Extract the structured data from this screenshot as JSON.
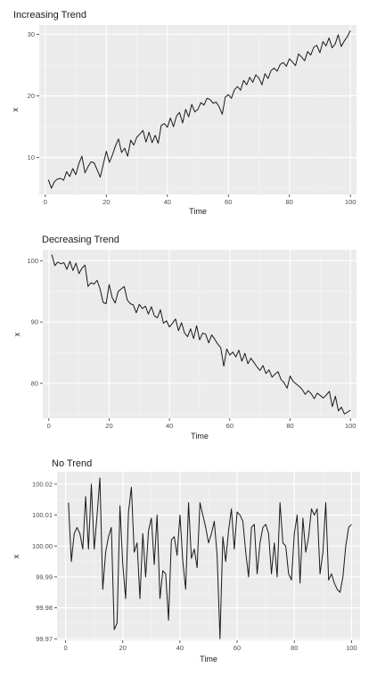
{
  "chart_data": [
    {
      "type": "line",
      "title": "Increasing Trend",
      "xlabel": "Time",
      "ylabel": "x",
      "xlim": [
        -2,
        102
      ],
      "ylim": [
        4,
        31.5
      ],
      "xticks": [
        0,
        20,
        40,
        60,
        80,
        100
      ],
      "yticks": [
        10,
        20,
        30
      ],
      "grid": true,
      "series": [
        {
          "x": [
            1,
            2,
            3,
            4,
            5,
            6,
            7,
            8,
            9,
            10,
            11,
            12,
            13,
            14,
            15,
            16,
            17,
            18,
            19,
            20,
            21,
            22,
            23,
            24,
            25,
            26,
            27,
            28,
            29,
            30,
            31,
            32,
            33,
            34,
            35,
            36,
            37,
            38,
            39,
            40,
            41,
            42,
            43,
            44,
            45,
            46,
            47,
            48,
            49,
            50,
            51,
            52,
            53,
            54,
            55,
            56,
            57,
            58,
            59,
            60,
            61,
            62,
            63,
            64,
            65,
            66,
            67,
            68,
            69,
            70,
            71,
            72,
            73,
            74,
            75,
            76,
            77,
            78,
            79,
            80,
            81,
            82,
            83,
            84,
            85,
            86,
            87,
            88,
            89,
            90,
            91,
            92,
            93,
            94,
            95,
            96,
            97,
            98,
            99,
            100
          ],
          "values": [
            6.4,
            5.0,
            6.1,
            6.5,
            6.6,
            6.3,
            7.7,
            6.9,
            8.2,
            7.2,
            9.0,
            10.2,
            7.5,
            8.5,
            9.3,
            9.1,
            8.0,
            6.8,
            8.9,
            11.0,
            9.2,
            10.4,
            11.9,
            13.0,
            10.8,
            11.5,
            10.2,
            12.8,
            12.0,
            13.3,
            13.8,
            14.4,
            12.5,
            14.1,
            12.4,
            13.6,
            12.3,
            15.2,
            15.5,
            14.9,
            16.4,
            15.0,
            16.7,
            17.3,
            15.6,
            17.8,
            16.6,
            18.6,
            17.4,
            17.8,
            18.9,
            18.5,
            19.6,
            19.4,
            18.8,
            19.0,
            18.2,
            17.0,
            19.8,
            20.2,
            19.6,
            21.0,
            21.5,
            20.9,
            22.5,
            21.8,
            23.0,
            22.2,
            23.4,
            22.9,
            21.8,
            23.6,
            22.8,
            24.1,
            24.5,
            24.0,
            25.1,
            25.4,
            24.8,
            26.0,
            25.5,
            24.9,
            26.8,
            26.3,
            25.7,
            27.2,
            26.6,
            27.9,
            28.2,
            27.0,
            28.8,
            28.1,
            29.4,
            27.8,
            28.4,
            29.9,
            28.0,
            28.9,
            29.6,
            30.6
          ]
        }
      ]
    },
    {
      "type": "line",
      "title": "Decreasing Trend",
      "xlabel": "Time",
      "ylabel": "x",
      "xlim": [
        -2,
        102
      ],
      "ylim": [
        74.3,
        101.8
      ],
      "xticks": [
        0,
        20,
        40,
        60,
        80,
        100
      ],
      "yticks": [
        80,
        90,
        100
      ],
      "grid": true,
      "series": [
        {
          "x": [
            1,
            2,
            3,
            4,
            5,
            6,
            7,
            8,
            9,
            10,
            11,
            12,
            13,
            14,
            15,
            16,
            17,
            18,
            19,
            20,
            21,
            22,
            23,
            24,
            25,
            26,
            27,
            28,
            29,
            30,
            31,
            32,
            33,
            34,
            35,
            36,
            37,
            38,
            39,
            40,
            41,
            42,
            43,
            44,
            45,
            46,
            47,
            48,
            49,
            50,
            51,
            52,
            53,
            54,
            55,
            56,
            57,
            58,
            59,
            60,
            61,
            62,
            63,
            64,
            65,
            66,
            67,
            68,
            69,
            70,
            71,
            72,
            73,
            74,
            75,
            76,
            77,
            78,
            79,
            80,
            81,
            82,
            83,
            84,
            85,
            86,
            87,
            88,
            89,
            90,
            91,
            92,
            93,
            94,
            95,
            96,
            97,
            98,
            99,
            100
          ],
          "values": [
            101.0,
            99.2,
            99.8,
            99.5,
            99.7,
            98.6,
            99.9,
            98.4,
            99.6,
            97.9,
            98.8,
            99.3,
            95.8,
            96.4,
            96.2,
            96.8,
            95.4,
            93.2,
            93.0,
            96.1,
            94.0,
            93.1,
            95.0,
            95.4,
            95.8,
            93.6,
            93.0,
            92.8,
            91.5,
            92.9,
            92.2,
            92.6,
            91.3,
            92.5,
            91.0,
            90.7,
            92.0,
            89.8,
            90.2,
            89.2,
            89.8,
            90.5,
            88.6,
            89.9,
            88.2,
            87.6,
            88.9,
            87.3,
            89.4,
            87.1,
            88.2,
            88.0,
            86.6,
            87.9,
            87.2,
            86.4,
            85.8,
            82.8,
            85.6,
            84.6,
            85.1,
            84.3,
            85.4,
            83.6,
            84.9,
            83.2,
            84.1,
            83.4,
            82.7,
            82.1,
            82.9,
            81.6,
            82.2,
            81.0,
            81.5,
            81.9,
            80.6,
            80.1,
            79.2,
            81.2,
            80.3,
            79.9,
            79.5,
            79.0,
            78.2,
            78.8,
            78.3,
            77.5,
            78.4,
            78.0,
            77.6,
            78.1,
            78.7,
            76.2,
            77.9,
            75.5,
            76.1,
            75.0,
            75.3,
            75.6
          ]
        }
      ]
    },
    {
      "type": "line",
      "title": "No Trend",
      "xlabel": "Time",
      "ylabel": "x",
      "xlim": [
        -3,
        103
      ],
      "ylim": [
        99.9695,
        100.024
      ],
      "xticks": [
        0,
        20,
        40,
        60,
        80,
        100
      ],
      "yticks": [
        99.97,
        99.98,
        99.99,
        100.0,
        100.01,
        100.02
      ],
      "ytick_labels": [
        "99.97",
        "99.98",
        "99.99",
        "100.00",
        "100.01",
        "100.02"
      ],
      "grid": true,
      "series": [
        {
          "x": [
            1,
            2,
            3,
            4,
            5,
            6,
            7,
            8,
            9,
            10,
            11,
            12,
            13,
            14,
            15,
            16,
            17,
            18,
            19,
            20,
            21,
            22,
            23,
            24,
            25,
            26,
            27,
            28,
            29,
            30,
            31,
            32,
            33,
            34,
            35,
            36,
            37,
            38,
            39,
            40,
            41,
            42,
            43,
            44,
            45,
            46,
            47,
            48,
            49,
            50,
            51,
            52,
            53,
            54,
            55,
            56,
            57,
            58,
            59,
            60,
            61,
            62,
            63,
            64,
            65,
            66,
            67,
            68,
            69,
            70,
            71,
            72,
            73,
            74,
            75,
            76,
            77,
            78,
            79,
            80,
            81,
            82,
            83,
            84,
            85,
            86,
            87,
            88,
            89,
            90,
            91,
            92,
            93,
            94,
            95,
            96,
            97,
            98,
            99,
            100
          ],
          "values": [
            100.014,
            99.995,
            100.004,
            100.006,
            100.004,
            99.999,
            100.016,
            99.999,
            100.02,
            99.999,
            100.01,
            100.022,
            99.986,
            99.998,
            100.003,
            100.006,
            99.973,
            99.975,
            100.013,
            99.994,
            99.983,
            100.011,
            100.019,
            99.998,
            100.001,
            99.983,
            100.004,
            99.99,
            100.005,
            100.009,
            99.994,
            100.01,
            99.983,
            99.992,
            99.991,
            99.976,
            100.002,
            100.003,
            99.997,
            100.01,
            99.995,
            99.986,
            100.014,
            99.996,
            99.999,
            99.993,
            100.014,
            100.01,
            100.006,
            100.001,
            100.004,
            100.008,
            99.997,
            99.97,
            100.003,
            99.995,
            100.005,
            100.012,
            99.999,
            100.011,
            100.01,
            100.008,
            99.998,
            99.99,
            100.006,
            100.007,
            99.991,
            100.001,
            100.006,
            100.007,
            100.004,
            99.991,
            100.001,
            99.99,
            100.014,
            100.001,
            100.0,
            99.991,
            99.989,
            100.004,
            100.01,
            99.988,
            100.009,
            99.998,
            100.003,
            100.012,
            100.01,
            100.012,
            99.991,
            99.998,
            100.014,
            99.989,
            99.991,
            99.988,
            99.986,
            99.985,
            99.99,
            100.0,
            100.006,
            100.007
          ]
        }
      ]
    }
  ]
}
